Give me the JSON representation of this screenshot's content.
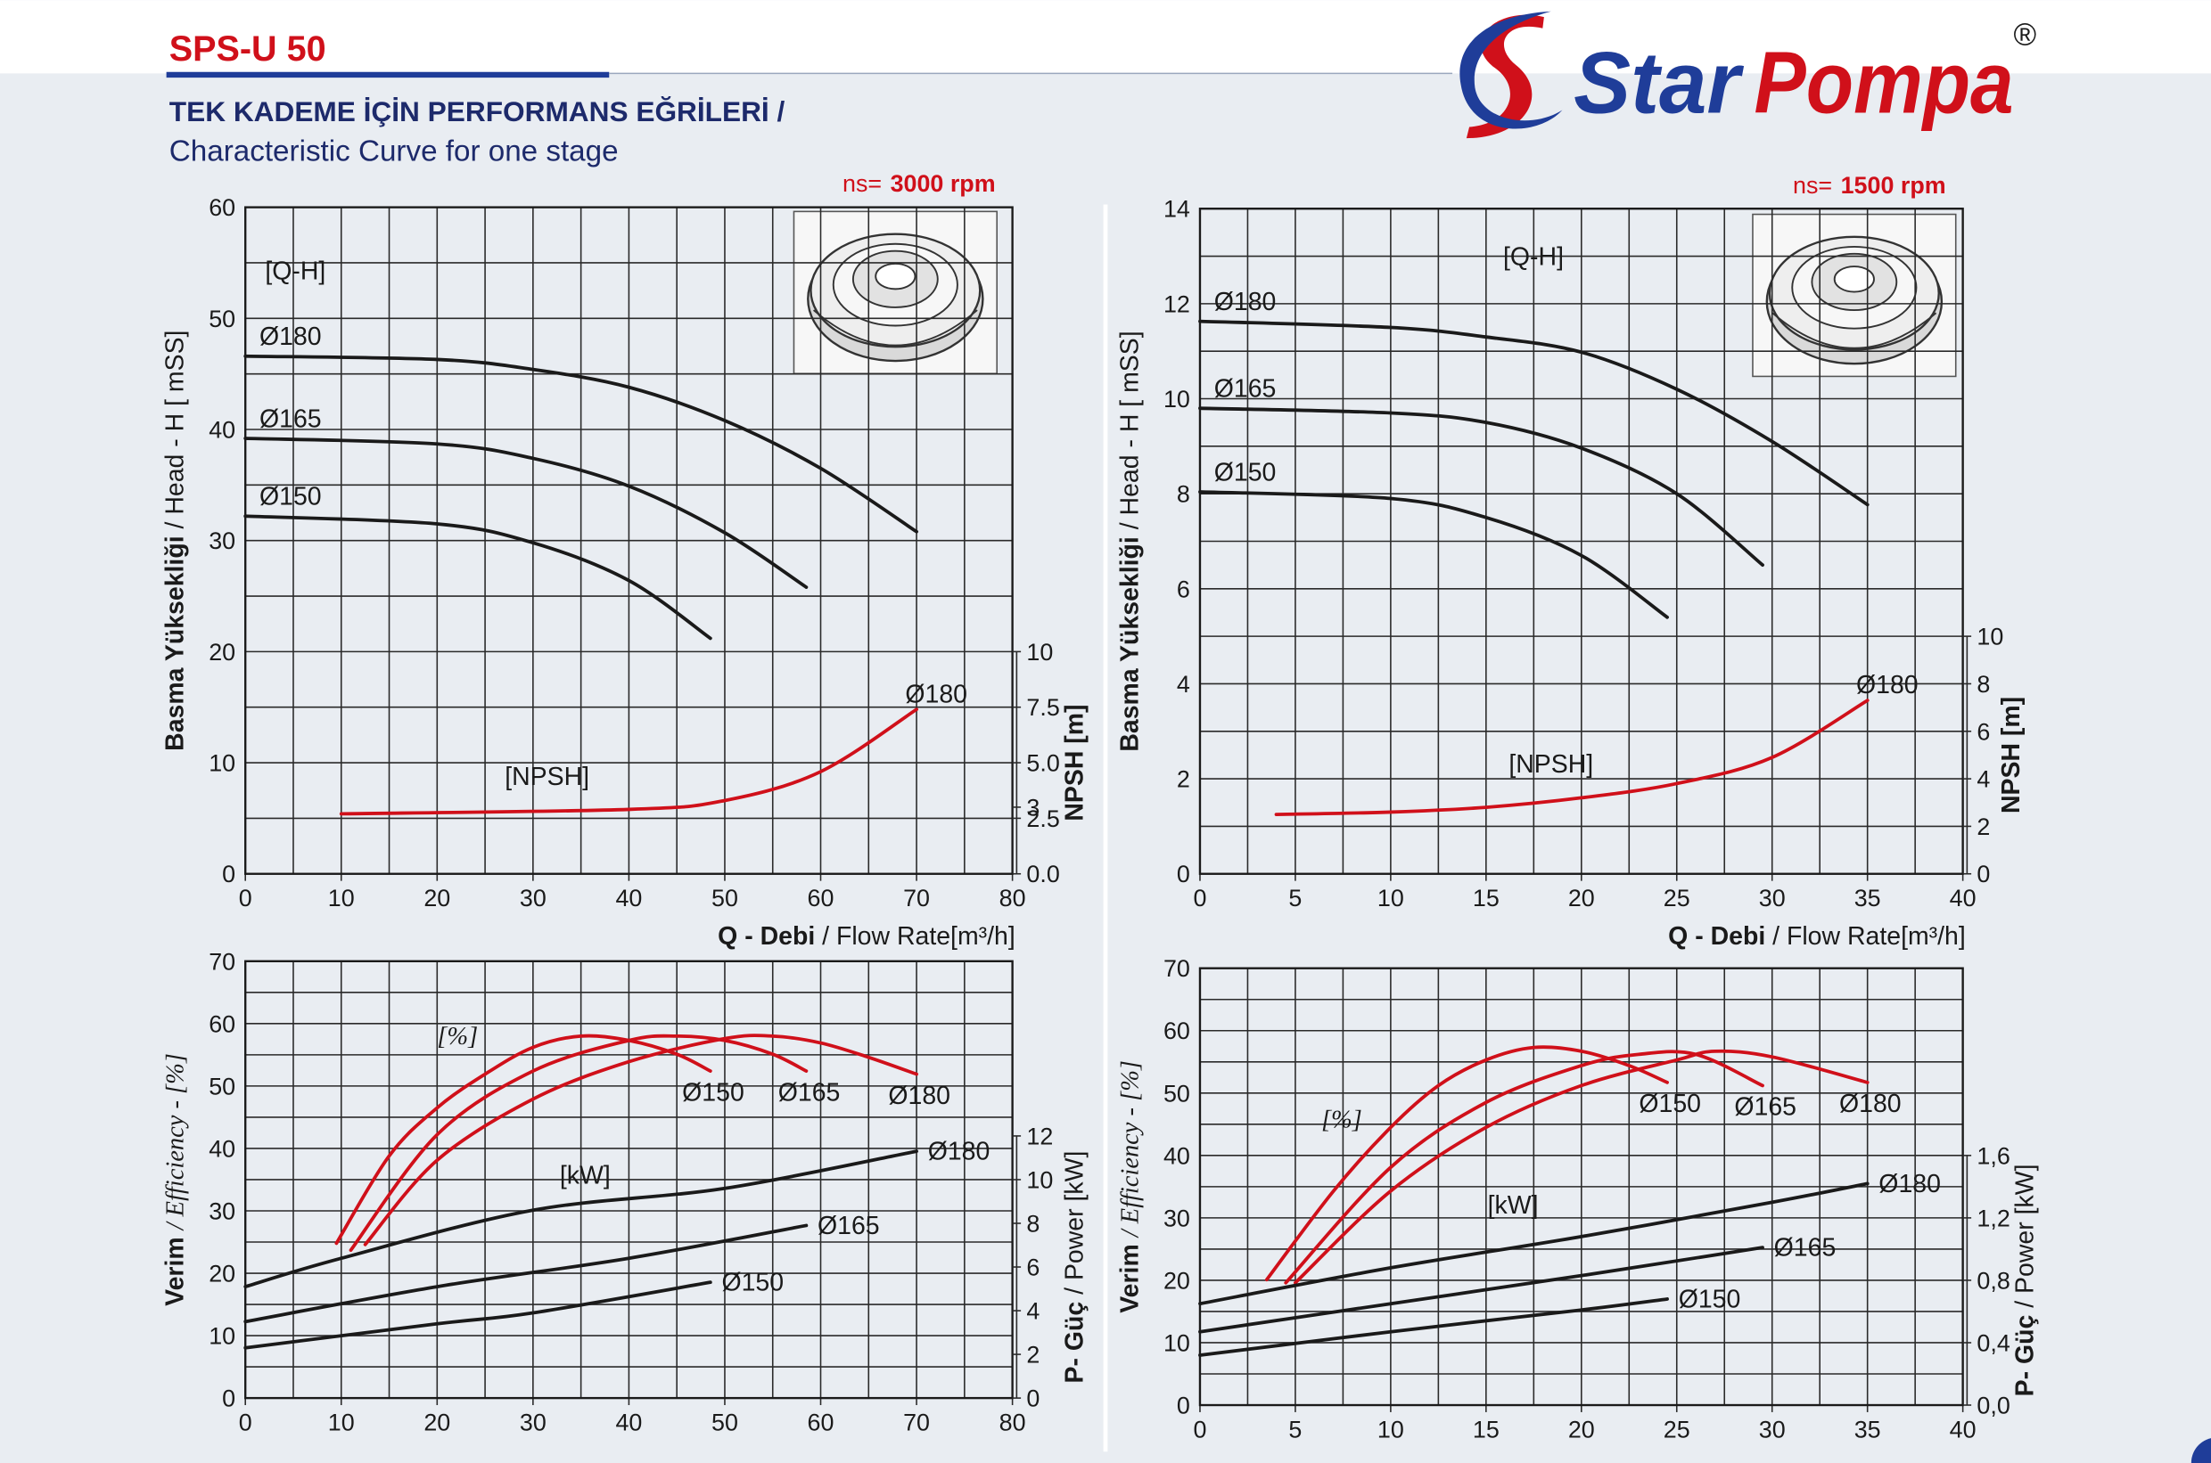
{
  "header": {
    "model": "SPS-U 50",
    "title": "TEK KADEME İÇİN PERFORMANS EĞRİLERİ  /",
    "subtitle": "Characteristic Curve for one stage",
    "brand_1": "Star",
    "brand_2": "Pompa",
    "registered": "®"
  },
  "chart_data": [
    {
      "type": "line",
      "xlim": [
        0,
        80
      ],
      "xticks": [
        0,
        10,
        20,
        30,
        40,
        50,
        60,
        70,
        80
      ],
      "ylim": [
        0,
        60
      ],
      "yticks": [
        0,
        10,
        20,
        30,
        40,
        50,
        60
      ],
      "y2lim": [
        0,
        30
      ],
      "y2ticks": [
        {
          "value": 0,
          "label": "0.0"
        },
        2.5,
        3,
        {
          "value": 5,
          "label": "5.0"
        },
        7.5,
        10
      ],
      "speed_label": "ns=",
      "speed": "3000 rpm",
      "xlabel_tr": "Q - Debi",
      "xlabel_en": "/ Flow Rate[m³/h]",
      "ylabel_tr": "Basma Yüksekliği",
      "ylabel_en": "/ Head - H [ mSS]",
      "y2label_tr": "NPSH [m]",
      "annotations": [
        "[Q-H]",
        "[NPSH]"
      ],
      "series": [
        {
          "name": "Ø180",
          "color": "#1a1a1a",
          "x": [
            0,
            20,
            30,
            40,
            50,
            60,
            70
          ],
          "values": [
            46.6,
            46.3,
            45.4,
            43.8,
            40.8,
            36.5,
            30.8
          ]
        },
        {
          "name": "Ø165",
          "color": "#1a1a1a",
          "x": [
            0,
            20,
            30,
            40,
            50,
            58.5
          ],
          "values": [
            39.2,
            38.7,
            37.4,
            34.9,
            30.7,
            25.8
          ]
        },
        {
          "name": "Ø150",
          "color": "#1a1a1a",
          "x": [
            0,
            20,
            30,
            40,
            48.5
          ],
          "values": [
            32.2,
            31.5,
            29.8,
            26.4,
            21.2
          ]
        },
        {
          "name": "Ø180",
          "color": "#d0101a",
          "axis": "y2",
          "x": [
            10,
            40,
            50,
            60,
            70
          ],
          "values": [
            2.7,
            2.9,
            3.3,
            4.6,
            7.4
          ]
        }
      ]
    },
    {
      "type": "line",
      "xlim": [
        0,
        80
      ],
      "xticks": [
        0,
        10,
        20,
        30,
        40,
        50,
        60,
        70,
        80
      ],
      "ylim": [
        0,
        70
      ],
      "yticks": [
        0,
        10,
        20,
        30,
        40,
        50,
        60,
        70
      ],
      "y2lim": [
        0,
        20
      ],
      "y2ticks": [
        0,
        2,
        4,
        6,
        8,
        10,
        12
      ],
      "ylabel_tr": "Verim",
      "ylabel_en": "/ Efficiency - [%]",
      "y2label_tr": "P- Güç",
      "y2label_en": "/ Power [kW]",
      "annotations": [
        "[%]",
        "[kW]"
      ],
      "series": [
        {
          "name": "Ø150",
          "color": "#d0101a",
          "x": [
            9.5,
            15,
            20,
            25,
            30,
            35,
            40,
            45,
            48.5
          ],
          "values": [
            24.8,
            38.8,
            46.5,
            51.9,
            56.2,
            58.0,
            57.3,
            55.1,
            52.4
          ]
        },
        {
          "name": "Ø165",
          "color": "#d0101a",
          "x": [
            11,
            20,
            30,
            40,
            45,
            50,
            55,
            58.5
          ],
          "values": [
            23.7,
            42.2,
            52.4,
            57.3,
            58.0,
            57.3,
            55.1,
            52.4
          ]
        },
        {
          "name": "Ø180",
          "color": "#d0101a",
          "x": [
            12.5,
            20,
            30,
            40,
            50,
            55,
            60,
            65,
            70
          ],
          "values": [
            24.6,
            38.1,
            47.9,
            53.9,
            57.6,
            58.0,
            56.9,
            54.6,
            51.9
          ]
        },
        {
          "name": "Ø180",
          "color": "#1a1a1a",
          "axis": "y2",
          "x": [
            0,
            10,
            30,
            50,
            70
          ],
          "values": [
            5.1,
            6.4,
            8.6,
            9.6,
            11.3
          ]
        },
        {
          "name": "Ø165",
          "color": "#1a1a1a",
          "axis": "y2",
          "x": [
            0,
            20,
            40,
            58.5
          ],
          "values": [
            3.5,
            5.1,
            6.4,
            7.9
          ]
        },
        {
          "name": "Ø150",
          "color": "#1a1a1a",
          "axis": "y2",
          "x": [
            0,
            20,
            30,
            48.5
          ],
          "values": [
            2.3,
            3.4,
            3.9,
            5.3
          ]
        }
      ]
    },
    {
      "type": "line",
      "xlim": [
        0,
        40
      ],
      "xticks": [
        0,
        5,
        10,
        15,
        20,
        25,
        30,
        35,
        40
      ],
      "ylim": [
        0,
        14
      ],
      "yticks": [
        0,
        2,
        4,
        6,
        8,
        10,
        12,
        14
      ],
      "y2lim": [
        0,
        28
      ],
      "y2ticks": [
        0,
        2,
        4,
        6,
        8,
        10
      ],
      "speed_label": "ns=",
      "speed": "1500 rpm",
      "xlabel_tr": "Q - Debi",
      "xlabel_en": "/ Flow Rate[m³/h]",
      "ylabel_tr": "Basma Yüksekliği",
      "ylabel_en": "/ Head - H [ mSS]",
      "y2label_tr": "NPSH [m]",
      "annotations": [
        "[Q-H]",
        "[NPSH]"
      ],
      "series": [
        {
          "name": "Ø180",
          "color": "#1a1a1a",
          "x": [
            0,
            10,
            15,
            20,
            25,
            30,
            35
          ],
          "values": [
            11.63,
            11.5,
            11.3,
            10.98,
            10.2,
            9.1,
            7.77
          ]
        },
        {
          "name": "Ø165",
          "color": "#1a1a1a",
          "x": [
            0,
            10,
            15,
            20,
            25,
            29.5
          ],
          "values": [
            9.8,
            9.7,
            9.5,
            8.96,
            8.0,
            6.5
          ]
        },
        {
          "name": "Ø150",
          "color": "#1a1a1a",
          "x": [
            0,
            10,
            15,
            20,
            24.5
          ],
          "values": [
            8.04,
            7.9,
            7.5,
            6.7,
            5.4
          ]
        },
        {
          "name": "Ø180",
          "color": "#d0101a",
          "axis": "y2",
          "x": [
            4,
            10,
            15,
            20,
            25,
            30,
            35
          ],
          "values": [
            2.5,
            2.6,
            2.8,
            3.2,
            3.8,
            4.9,
            7.3
          ]
        }
      ]
    },
    {
      "type": "line",
      "xlim": [
        0,
        40
      ],
      "xticks": [
        0,
        5,
        10,
        15,
        20,
        25,
        30,
        35,
        40
      ],
      "ylim": [
        0,
        70
      ],
      "yticks": [
        0,
        10,
        20,
        30,
        40,
        50,
        60,
        70
      ],
      "y2lim": [
        0,
        2.8
      ],
      "y2ticks": [
        {
          "value": 0,
          "label": "0,0"
        },
        {
          "value": 0.4,
          "label": "0,4"
        },
        {
          "value": 0.8,
          "label": "0,8"
        },
        {
          "value": 1.2,
          "label": "1,2"
        },
        {
          "value": 1.6,
          "label": "1,6"
        }
      ],
      "ylabel_tr": "Verim",
      "ylabel_en": "/ Efficiency - [%]",
      "y2label_tr": "P- Güç",
      "y2label_en": "/ Power [kW]",
      "annotations": [
        "[%]",
        "[kW]"
      ],
      "series": [
        {
          "name": "Ø150",
          "color": "#d0101a",
          "x": [
            3.5,
            7,
            10,
            12.5,
            15,
            17.5,
            20,
            22.5,
            24.5
          ],
          "values": [
            20.1,
            34.3,
            44.5,
            51.2,
            55.3,
            57.3,
            56.7,
            54.4,
            51.7
          ]
        },
        {
          "name": "Ø165",
          "color": "#d0101a",
          "x": [
            4.5,
            10,
            15,
            20,
            23,
            26,
            29.5
          ],
          "values": [
            19.6,
            38.1,
            48.5,
            54.4,
            56.2,
            56.2,
            51.2
          ]
        },
        {
          "name": "Ø180",
          "color": "#d0101a",
          "x": [
            5,
            10,
            15,
            20,
            25,
            27,
            30,
            35
          ],
          "values": [
            19.6,
            34.3,
            44.5,
            51.2,
            55.3,
            56.7,
            55.8,
            51.7
          ]
        },
        {
          "name": "Ø180",
          "color": "#1a1a1a",
          "axis": "y2",
          "x": [
            0,
            10,
            20,
            30,
            35
          ],
          "values": [
            0.65,
            0.88,
            1.08,
            1.3,
            1.42
          ]
        },
        {
          "name": "Ø165",
          "color": "#1a1a1a",
          "axis": "y2",
          "x": [
            0,
            10,
            20,
            29.5
          ],
          "values": [
            0.47,
            0.65,
            0.83,
            1.01
          ]
        },
        {
          "name": "Ø150",
          "color": "#1a1a1a",
          "axis": "y2",
          "x": [
            0,
            10,
            20,
            24.5
          ],
          "values": [
            0.32,
            0.47,
            0.61,
            0.68
          ]
        }
      ]
    }
  ]
}
